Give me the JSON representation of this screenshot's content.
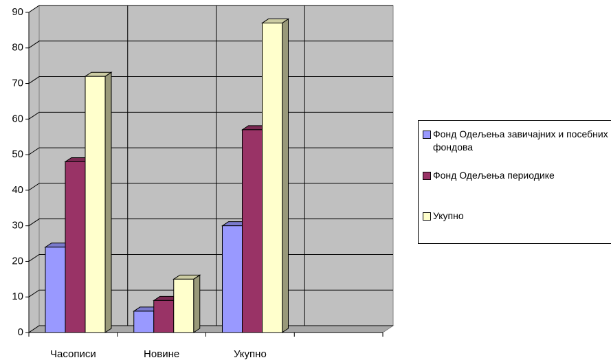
{
  "chart_data": {
    "type": "bar3d",
    "categories": [
      "Часописи",
      "Новине",
      "Укупно",
      null
    ],
    "series": [
      {
        "name": "Фонд Одељења завичајних и посебних фондова",
        "color": "#9999ff",
        "values": [
          24,
          6,
          30,
          null
        ]
      },
      {
        "name": "Фонд Одељења периодике",
        "color": "#993366",
        "values": [
          48,
          9,
          57,
          null
        ]
      },
      {
        "name": "Укупно",
        "color": "#ffffcc",
        "values": [
          72,
          15,
          87,
          null
        ]
      }
    ],
    "ylim": [
      0,
      90
    ],
    "yticks": [
      0,
      10,
      20,
      30,
      40,
      50,
      60,
      70,
      80,
      90
    ],
    "grid": true,
    "legend": "right"
  }
}
